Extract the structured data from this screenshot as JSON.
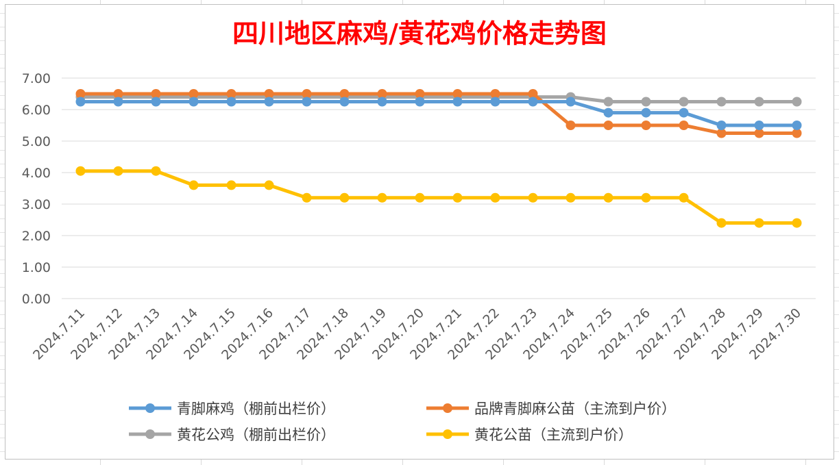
{
  "chart_data": {
    "type": "line",
    "title": "四川地区麻鸡/黄花鸡价格走势图",
    "xlabel": "",
    "ylabel": "",
    "ylim": [
      0,
      7
    ],
    "yticks": [
      "0.00",
      "1.00",
      "2.00",
      "3.00",
      "4.00",
      "5.00",
      "6.00",
      "7.00"
    ],
    "grid": "horizontal",
    "legend_position": "bottom",
    "categories": [
      "2024.7.11",
      "2024.7.12",
      "2024.7.13",
      "2024.7.14",
      "2024.7.15",
      "2024.7.16",
      "2024.7.17",
      "2024.7.18",
      "2024.7.19",
      "2024.7.20",
      "2024.7.21",
      "2024.7.22",
      "2024.7.23",
      "2024.7.24",
      "2024.7.25",
      "2024.7.26",
      "2024.7.27",
      "2024.7.28",
      "2024.7.29",
      "2024.7.30"
    ],
    "series": [
      {
        "name": "青脚麻鸡（棚前出栏价）",
        "color": "#5b9bd5",
        "values": [
          6.25,
          6.25,
          6.25,
          6.25,
          6.25,
          6.25,
          6.25,
          6.25,
          6.25,
          6.25,
          6.25,
          6.25,
          6.25,
          6.25,
          5.9,
          5.9,
          5.9,
          5.5,
          5.5,
          5.5
        ]
      },
      {
        "name": "品牌青脚麻公苗（主流到户价）",
        "color": "#ed7d31",
        "values": [
          6.5,
          6.5,
          6.5,
          6.5,
          6.5,
          6.5,
          6.5,
          6.5,
          6.5,
          6.5,
          6.5,
          6.5,
          6.5,
          5.5,
          5.5,
          5.5,
          5.5,
          5.25,
          5.25,
          5.25
        ]
      },
      {
        "name": "黄花公鸡（棚前出栏价）",
        "color": "#a5a5a5",
        "values": [
          6.4,
          6.4,
          6.4,
          6.4,
          6.4,
          6.4,
          6.4,
          6.4,
          6.4,
          6.4,
          6.4,
          6.4,
          6.4,
          6.4,
          6.25,
          6.25,
          6.25,
          6.25,
          6.25,
          6.25
        ]
      },
      {
        "name": "黄花公苗（主流到户价）",
        "color": "#ffc000",
        "values": [
          4.05,
          4.05,
          4.05,
          3.6,
          3.6,
          3.6,
          3.2,
          3.2,
          3.2,
          3.2,
          3.2,
          3.2,
          3.2,
          3.2,
          3.2,
          3.2,
          3.2,
          2.4,
          2.4,
          2.4
        ]
      }
    ]
  }
}
